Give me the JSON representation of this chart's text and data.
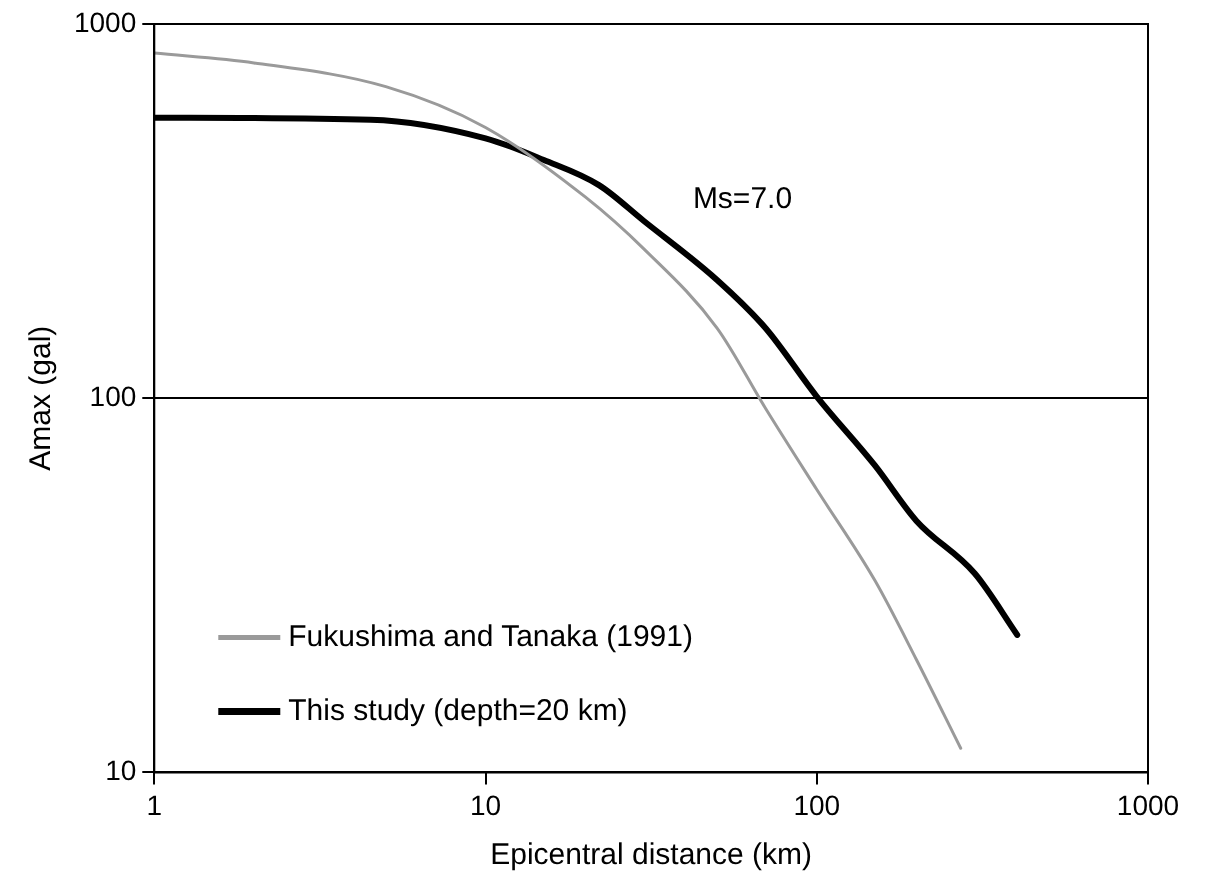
{
  "chart_data": {
    "type": "line",
    "xlabel": "Epicentral distance (km)",
    "ylabel": "Amax (gal)",
    "log": "xy",
    "xlim": [
      1,
      1000
    ],
    "ylim": [
      10,
      1000
    ],
    "xticks": [
      1,
      10,
      100,
      1000
    ],
    "yticks": [
      10,
      100,
      1000
    ],
    "grid": "y",
    "legend": "bottom left",
    "marker": "none",
    "annotations": [
      "Ms=7.0"
    ],
    "series": [
      {
        "name": "Fukushima and Tanaka (1991)",
        "color": "#9a9a9a",
        "x": [
          1,
          2,
          5,
          10,
          20,
          30,
          50,
          70,
          100,
          150,
          200,
          272
        ],
        "values": [
          836,
          787,
          680,
          529,
          345,
          251,
          154,
          94,
          57,
          32.5,
          20,
          11.6
        ]
      },
      {
        "name": "This study (depth=20 km)",
        "color": "#000000",
        "x": [
          1,
          4.5,
          10,
          15,
          22,
          30,
          50,
          70,
          100,
          150,
          200,
          300,
          403
        ],
        "values": [
          562,
          555,
          495,
          433,
          371,
          298,
          207,
          154,
          101,
          66,
          47,
          34,
          23.3
        ]
      }
    ]
  }
}
